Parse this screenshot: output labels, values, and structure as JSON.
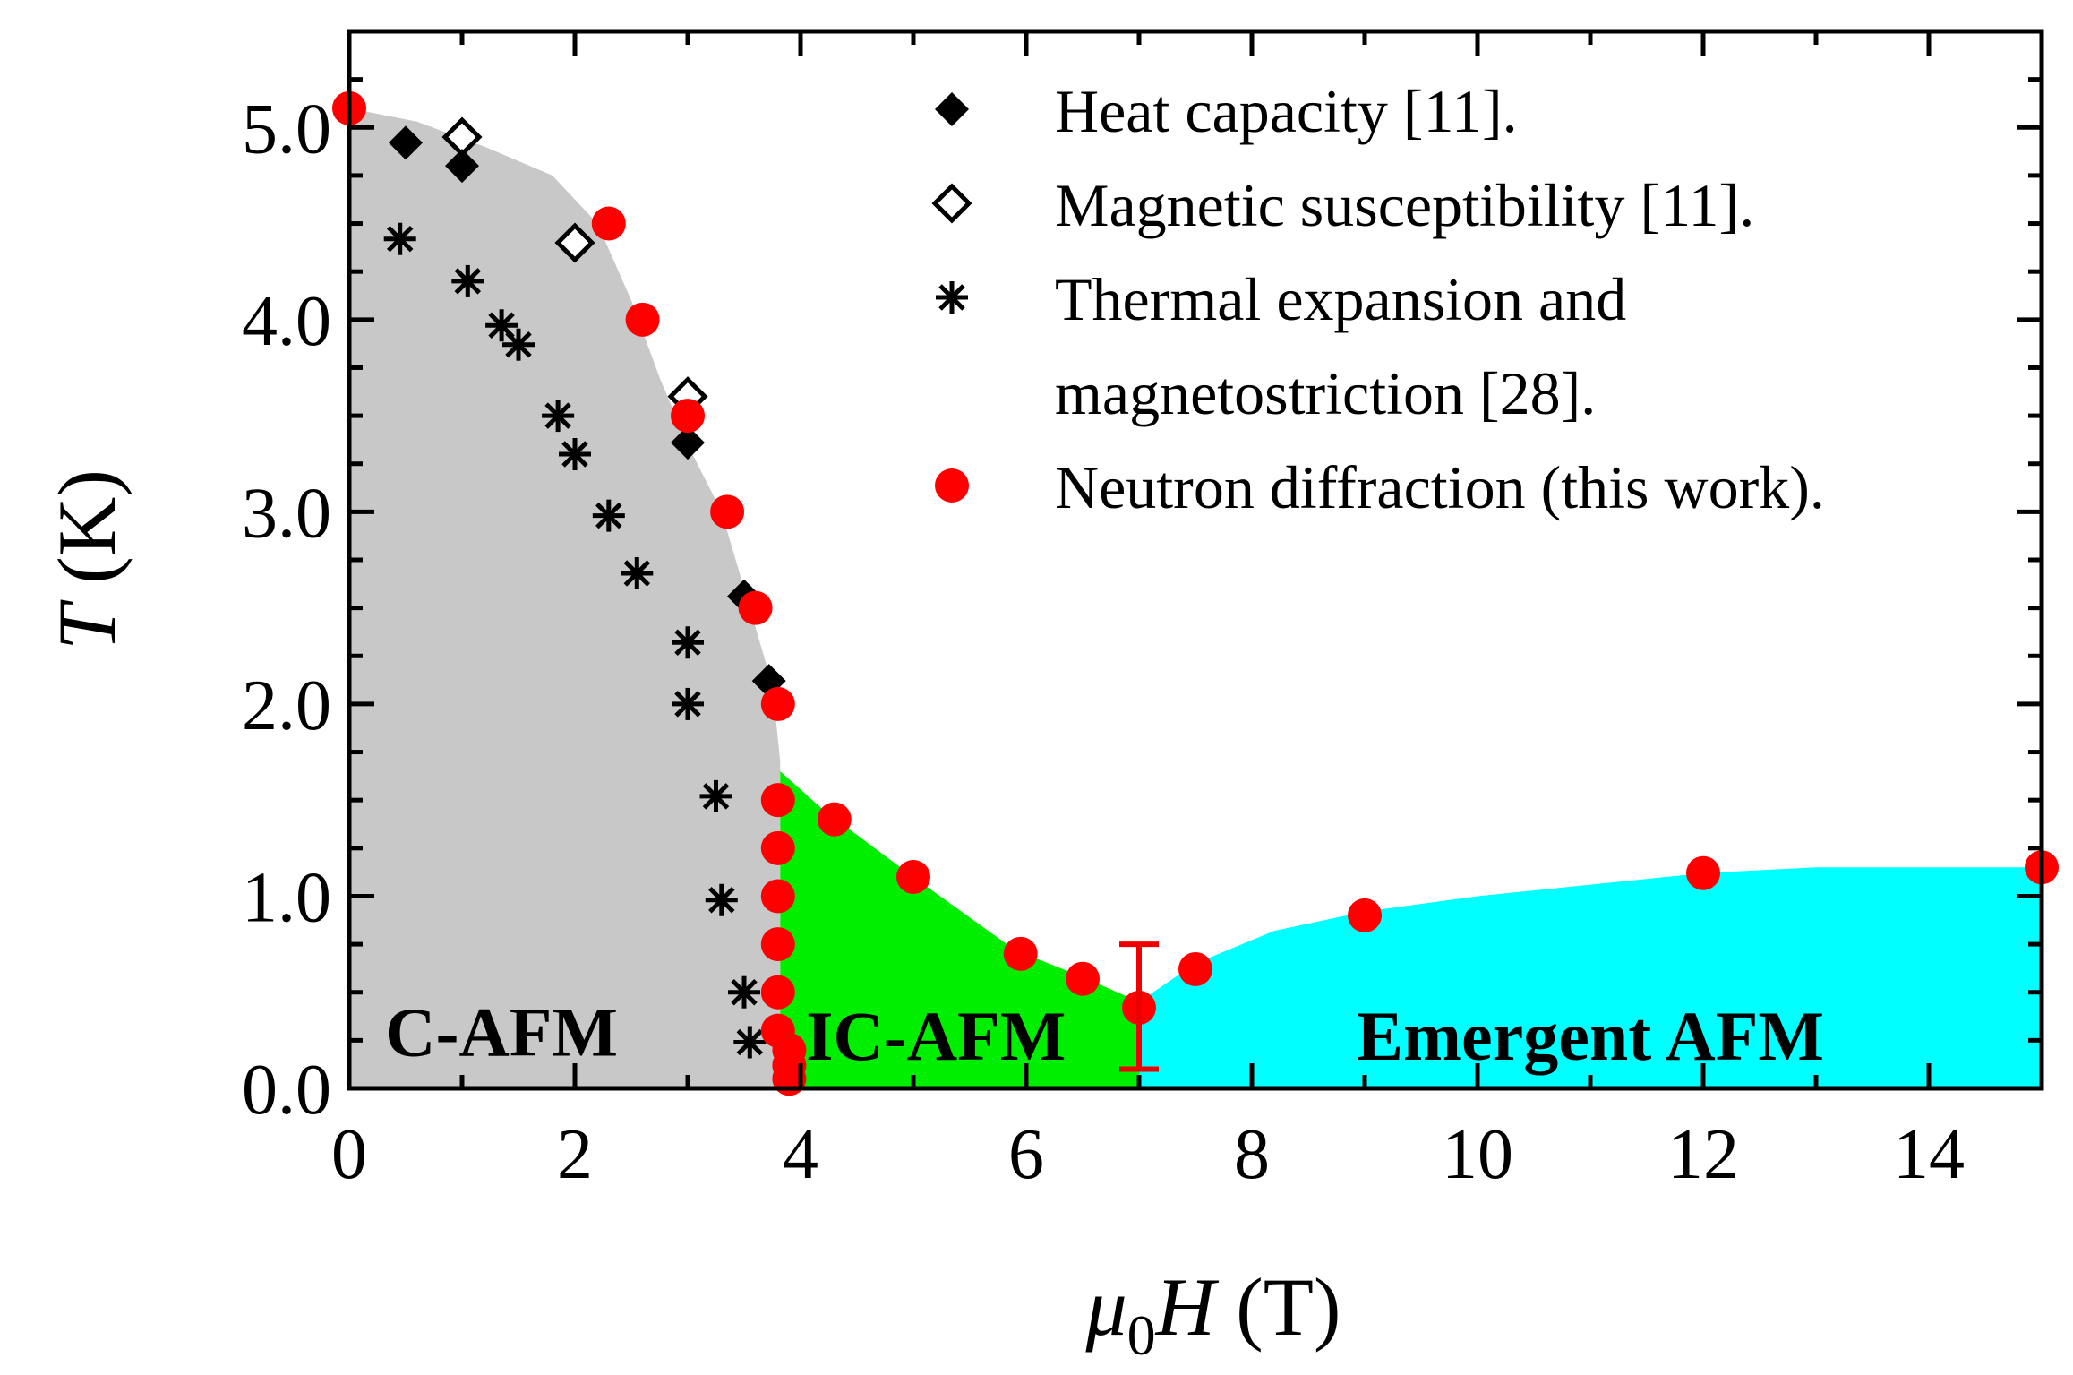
{
  "chart_data": {
    "type": "scatter",
    "title": "",
    "xlabel": {
      "var": "μ",
      "sub": "0",
      "var2": "H",
      "unit": " (T)"
    },
    "ylabel": {
      "var": "T",
      "unit": " (K)"
    },
    "xlim": [
      0,
      15
    ],
    "ylim": [
      0,
      5.5
    ],
    "x_ticks": [
      0,
      2,
      4,
      6,
      8,
      10,
      12,
      14
    ],
    "x_tick_labels": [
      "0",
      "2",
      "4",
      "6",
      "8",
      "10",
      "12",
      "14"
    ],
    "y_ticks": [
      0,
      1,
      2,
      3,
      4,
      5
    ],
    "y_tick_labels": [
      "0.0",
      "1.0",
      "2.0",
      "3.0",
      "4.0",
      "5.0"
    ],
    "legend_position": "top-right",
    "legend": [
      {
        "series": "heat",
        "lines": [
          "Heat capacity [11]."
        ]
      },
      {
        "series": "susc",
        "lines": [
          "Magnetic susceptibility [11]."
        ]
      },
      {
        "series": "thermal",
        "lines": [
          "Thermal expansion and",
          "magnetostriction [28]."
        ]
      },
      {
        "series": "neutron",
        "lines": [
          "Neutron diffraction (this work)."
        ]
      }
    ],
    "series": [
      {
        "id": "heat",
        "name": "Heat capacity [11].",
        "marker": "diamond-filled",
        "color": "#000000",
        "points": [
          [
            0.5,
            4.92
          ],
          [
            1.0,
            4.8
          ],
          [
            3.0,
            3.36
          ],
          [
            3.5,
            2.56
          ],
          [
            3.72,
            2.12
          ]
        ]
      },
      {
        "id": "susc",
        "name": "Magnetic susceptibility [11].",
        "marker": "diamond-open",
        "color": "#000000",
        "points": [
          [
            1.0,
            4.95
          ],
          [
            2.0,
            4.4
          ],
          [
            3.0,
            3.6
          ]
        ]
      },
      {
        "id": "thermal",
        "name": "Thermal expansion and magnetostriction [28].",
        "marker": "asterisk",
        "color": "#000000",
        "points": [
          [
            0.45,
            4.42
          ],
          [
            1.05,
            4.2
          ],
          [
            1.35,
            3.97
          ],
          [
            1.5,
            3.87
          ],
          [
            1.85,
            3.5
          ],
          [
            2.0,
            3.3
          ],
          [
            2.3,
            2.98
          ],
          [
            2.55,
            2.68
          ],
          [
            3.0,
            2.32
          ],
          [
            3.0,
            2.0
          ],
          [
            3.25,
            1.52
          ],
          [
            3.3,
            0.98
          ],
          [
            3.5,
            0.5
          ],
          [
            3.55,
            0.24
          ]
        ]
      },
      {
        "id": "neutron",
        "name": "Neutron diffraction (this work).",
        "marker": "circle",
        "color": "#ff0000",
        "points": [
          [
            0.0,
            5.1
          ],
          [
            2.3,
            4.5
          ],
          [
            2.6,
            4.0
          ],
          [
            3.0,
            3.5
          ],
          [
            3.35,
            3.0
          ],
          [
            3.6,
            2.5
          ],
          [
            3.8,
            2.0
          ],
          [
            3.8,
            1.5
          ],
          [
            3.8,
            1.25
          ],
          [
            3.8,
            1.0
          ],
          [
            3.8,
            0.75
          ],
          [
            3.8,
            0.5
          ],
          [
            3.8,
            0.3
          ],
          [
            3.9,
            0.2
          ],
          [
            3.9,
            0.12
          ],
          [
            3.9,
            0.05
          ],
          [
            4.3,
            1.4
          ],
          [
            5.0,
            1.1
          ],
          [
            5.95,
            0.7
          ],
          [
            6.5,
            0.57
          ],
          [
            7.0,
            0.42
          ],
          [
            7.5,
            0.62
          ],
          [
            9.0,
            0.9
          ],
          [
            12.0,
            1.12
          ],
          [
            15.0,
            1.15
          ]
        ],
        "error_bars": [
          {
            "x": 7.0,
            "y": 0.42,
            "low": 0.1,
            "high": 0.75
          }
        ]
      }
    ],
    "regions": [
      {
        "name": "C-AFM",
        "label": "C-AFM",
        "color": "#c8c8c8",
        "polygon": [
          [
            0,
            5.1
          ],
          [
            0.6,
            5.03
          ],
          [
            1.2,
            4.9
          ],
          [
            1.8,
            4.75
          ],
          [
            2.2,
            4.5
          ],
          [
            2.5,
            4.1
          ],
          [
            2.75,
            3.7
          ],
          [
            3.0,
            3.35
          ],
          [
            3.3,
            3.0
          ],
          [
            3.55,
            2.5
          ],
          [
            3.75,
            2.1
          ],
          [
            3.82,
            1.7
          ],
          [
            3.82,
            1.0
          ],
          [
            3.82,
            0.0
          ],
          [
            0,
            0
          ]
        ],
        "label_at": [
          1.35,
          0.3
        ]
      },
      {
        "name": "IC-AFM",
        "label": "IC-AFM",
        "color": "#00ee00",
        "polygon": [
          [
            3.82,
            1.65
          ],
          [
            4.2,
            1.45
          ],
          [
            5.0,
            1.1
          ],
          [
            5.9,
            0.72
          ],
          [
            6.5,
            0.58
          ],
          [
            7.0,
            0.45
          ],
          [
            7.0,
            0.0
          ],
          [
            3.82,
            0.0
          ]
        ],
        "label_at": [
          5.2,
          0.28
        ]
      },
      {
        "name": "Emergent AFM",
        "label": "Emergent AFM",
        "color": "#00ffff",
        "polygon": [
          [
            7.0,
            0.45
          ],
          [
            7.5,
            0.65
          ],
          [
            8.2,
            0.82
          ],
          [
            9.0,
            0.92
          ],
          [
            10.0,
            1.0
          ],
          [
            11.0,
            1.06
          ],
          [
            12.0,
            1.12
          ],
          [
            13.0,
            1.15
          ],
          [
            15.0,
            1.15
          ],
          [
            15.0,
            0.0
          ],
          [
            7.0,
            0.0
          ]
        ],
        "label_at": [
          11.0,
          0.28
        ]
      }
    ]
  }
}
